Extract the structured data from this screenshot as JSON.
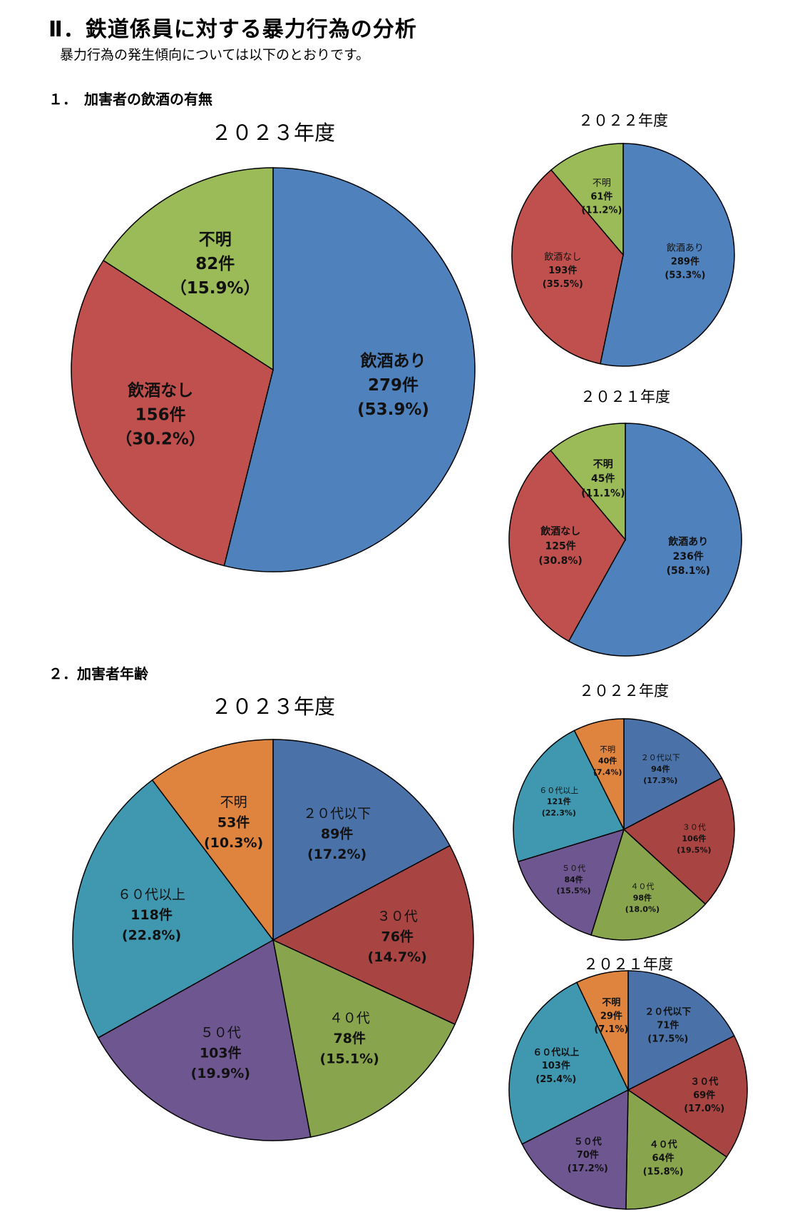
{
  "page": {
    "title": "Ⅱ．鉄道係員に対する暴力行為の分析",
    "subtitle": "暴力行為の発生傾向については以下のとおりです。",
    "section1": "１．　加害者の飲酒の有無",
    "section2": "２．加害者年齢"
  },
  "chart_data": [
    {
      "type": "pie",
      "title": "２０２３年度",
      "categories": [
        "飲酒あり",
        "飲酒なし",
        "不明"
      ],
      "counts": [
        "279件",
        "156件",
        "82件"
      ],
      "percents": [
        "(53.9%)",
        "（30.2%）",
        "（15.9%）"
      ],
      "values": [
        53.9,
        30.2,
        15.9
      ],
      "colors": [
        "#4F81BD",
        "#C0504D",
        "#9BBB59"
      ]
    },
    {
      "type": "pie",
      "title": "２０２２年度",
      "categories": [
        "飲酒あり",
        "飲酒なし",
        "不明"
      ],
      "counts": [
        "289件",
        "193件",
        "61件"
      ],
      "percents": [
        "(53.3%)",
        "(35.5%)",
        "(11.2%)"
      ],
      "values": [
        53.3,
        35.5,
        11.2
      ],
      "colors": [
        "#4F81BD",
        "#C0504D",
        "#9BBB59"
      ]
    },
    {
      "type": "pie",
      "title": "２０２１年度",
      "categories": [
        "飲酒あり",
        "飲酒なし",
        "不明"
      ],
      "counts": [
        "236件",
        "125件",
        "45件"
      ],
      "percents": [
        "(58.1%)",
        "(30.8%)",
        "(11.1%)"
      ],
      "values": [
        58.1,
        30.8,
        11.1
      ],
      "colors": [
        "#4F81BD",
        "#C0504D",
        "#9BBB59"
      ]
    },
    {
      "type": "pie",
      "title": "２０２３年度",
      "categories": [
        "２０代以下",
        "３０代",
        "４０代",
        "５０代",
        "６０代以上",
        "不明"
      ],
      "counts": [
        "89件",
        "76件",
        "78件",
        "103件",
        "118件",
        "53件"
      ],
      "percents": [
        "(17.2%)",
        "(14.7%)",
        "(15.1%)",
        "(19.9%)",
        "(22.8%)",
        "(10.3%)"
      ],
      "values": [
        17.2,
        14.7,
        15.1,
        19.9,
        22.8,
        10.3
      ],
      "colors": [
        "#4A72A8",
        "#A84441",
        "#88A54E",
        "#6E5690",
        "#3F98B0",
        "#DE843E"
      ]
    },
    {
      "type": "pie",
      "title": "２０２２年度",
      "categories": [
        "２０代以下",
        "３０代",
        "４０代",
        "５０代",
        "６０代以上",
        "不明"
      ],
      "counts": [
        "94件",
        "106件",
        "98件",
        "84件",
        "121件",
        "40件"
      ],
      "percents": [
        "(17.3%)",
        "(19.5%)",
        "(18.0%)",
        "(15.5%)",
        "(22.3%)",
        "(7.4%)"
      ],
      "values": [
        17.3,
        19.5,
        18.0,
        15.5,
        22.3,
        7.4
      ],
      "colors": [
        "#4A72A8",
        "#A84441",
        "#88A54E",
        "#6E5690",
        "#3F98B0",
        "#DE843E"
      ]
    },
    {
      "type": "pie",
      "title": "２０２１年度",
      "categories": [
        "２０代以下",
        "３０代",
        "４０代",
        "５０代",
        "６０代以上",
        "不明"
      ],
      "counts": [
        "71件",
        "69件",
        "64件",
        "70件",
        "103件",
        "29件"
      ],
      "percents": [
        "(17.5%)",
        "(17.0%)",
        "(15.8%)",
        "(17.2%)",
        "(25.4%)",
        "(7.1%)"
      ],
      "values": [
        17.5,
        17.0,
        15.8,
        17.2,
        25.4,
        7.1
      ],
      "colors": [
        "#4A72A8",
        "#A84441",
        "#88A54E",
        "#6E5690",
        "#3F98B0",
        "#DE843E"
      ]
    }
  ]
}
